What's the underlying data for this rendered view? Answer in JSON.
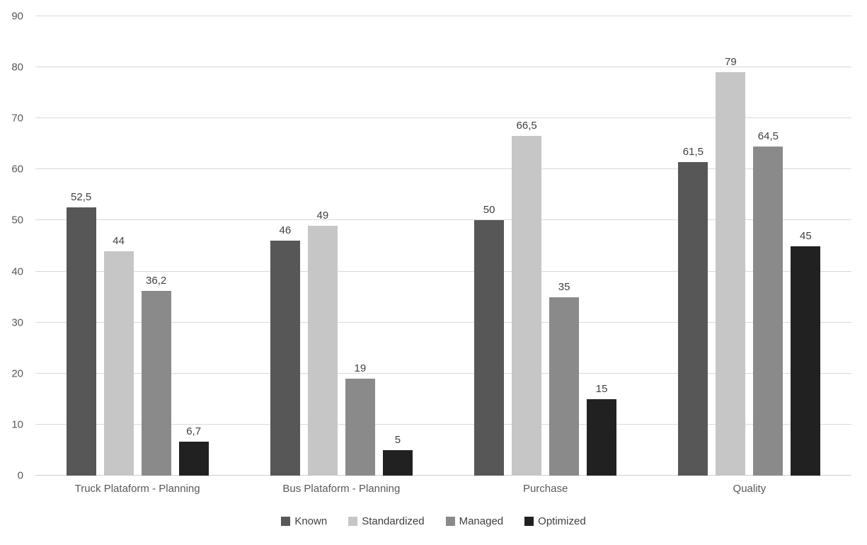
{
  "chart_data": {
    "type": "bar",
    "title": "",
    "categories": [
      "Truck Plataform - Planning",
      "Bus Plataform - Planning",
      "Purchase",
      "Quality"
    ],
    "series": [
      {
        "name": "Known",
        "color": "#575757",
        "values": [
          52.5,
          46,
          50,
          61.5
        ]
      },
      {
        "name": "Standardized",
        "color": "#c6c6c6",
        "values": [
          44,
          49,
          66.5,
          79
        ]
      },
      {
        "name": "Managed",
        "color": "#8a8a8a",
        "values": [
          36.2,
          19,
          35,
          64.5
        ]
      },
      {
        "name": "Optimized",
        "color": "#212121",
        "values": [
          6.7,
          5,
          15,
          45
        ]
      }
    ],
    "data_labels": {
      "visible": true,
      "decimal_separator": ",",
      "labels": [
        [
          "52,5",
          "46",
          "50",
          "61,5"
        ],
        [
          "44",
          "49",
          "66,5",
          "79"
        ],
        [
          "36,2",
          "19",
          "35",
          "64,5"
        ],
        [
          "6,7",
          "5",
          "15",
          "45"
        ]
      ]
    },
    "xlabel": "",
    "ylabel": "",
    "ylim": [
      0,
      90
    ],
    "yticks": [
      0,
      10,
      20,
      30,
      40,
      50,
      60,
      70,
      80,
      90
    ],
    "grid": true,
    "gridline_color": "#d9d9d9",
    "axis_text_color": "#595959",
    "value_label_color": "#3f3f3f",
    "legend_position": "bottom",
    "legend_entries": [
      "Known",
      "Standardized",
      "Managed",
      "Optimized"
    ]
  }
}
